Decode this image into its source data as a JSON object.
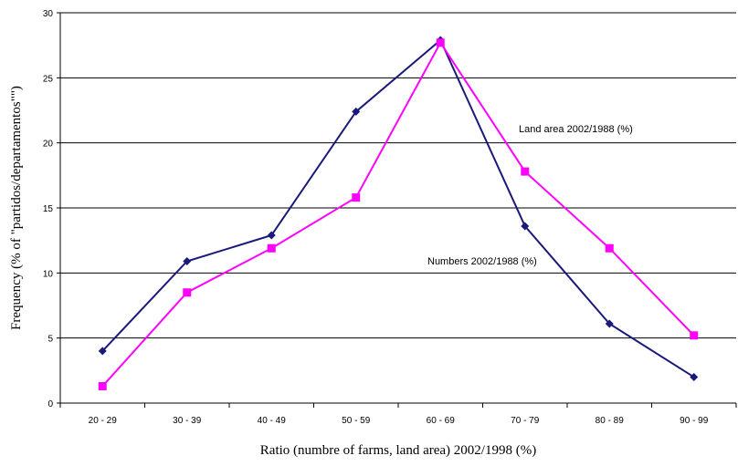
{
  "chart_data": {
    "type": "line",
    "title": "",
    "xlabel": "Ratio (numbre of farms, land area) 2002/1998 (%)",
    "ylabel": "Frequency (% of \"partidos/departamentos\"\")",
    "categories": [
      "20 - 29",
      "30 - 39",
      "40 - 49",
      "50 - 59",
      "60 - 69",
      "70 - 79",
      "80 - 89",
      "90 - 99"
    ],
    "ylim": [
      0,
      30
    ],
    "yticks": [
      0,
      5,
      10,
      15,
      20,
      25,
      30
    ],
    "grid": true,
    "series": [
      {
        "name": "Numbers 2002/1988 (%)",
        "color": "#1a1a7a",
        "marker": "diamond",
        "values": [
          4.0,
          10.9,
          12.9,
          22.4,
          27.9,
          13.6,
          6.1,
          2.0
        ]
      },
      {
        "name": "Land area 2002/1988 (%)",
        "color": "#ff00ff",
        "marker": "square",
        "values": [
          1.3,
          8.5,
          11.9,
          15.8,
          27.7,
          17.8,
          11.9,
          5.2
        ]
      }
    ]
  }
}
